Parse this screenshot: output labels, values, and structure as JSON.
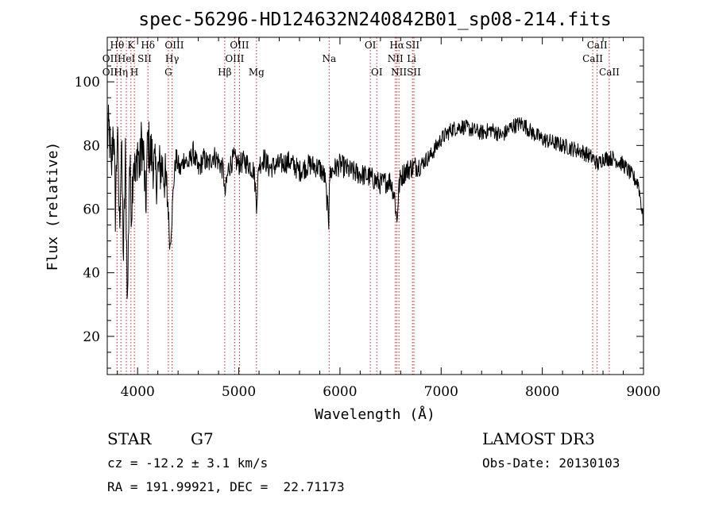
{
  "chart_data": {
    "type": "line",
    "title": "spec-56296-HD124632N240842B01_sp08-214.fits",
    "xlabel": "Wavelength (Å)",
    "ylabel": "Flux (relative)",
    "xlim": [
      3700,
      9000
    ],
    "ylim": [
      8,
      114
    ],
    "x_ticks": [
      4000,
      5000,
      6000,
      7000,
      8000,
      9000
    ],
    "y_ticks": [
      20,
      40,
      60,
      80,
      100
    ],
    "x_minor_step": 200,
    "y_minor_step": 5,
    "grid": false,
    "line_color": "#000000",
    "marker_color": "#c62828",
    "series": [
      {
        "x": [
          3700,
          3720,
          3740,
          3760,
          3780,
          3800,
          3820,
          3840,
          3860,
          3880,
          3900,
          3920,
          3940,
          3960,
          3980,
          4000,
          4020,
          4040,
          4060,
          4080,
          4100,
          4120,
          4150,
          4180,
          4210,
          4240,
          4270,
          4300,
          4320,
          4340,
          4360,
          4380,
          4420,
          4460,
          4500,
          4550,
          4600,
          4650,
          4700,
          4750,
          4800,
          4850,
          4861,
          4900,
          4950,
          5000,
          5050,
          5100,
          5150,
          5175,
          5200,
          5250,
          5300,
          5400,
          5500,
          5600,
          5700,
          5800,
          5850,
          5890,
          5895,
          5920,
          6000,
          6100,
          6200,
          6300,
          6400,
          6500,
          6540,
          6563,
          6580,
          6600,
          6650,
          6700,
          6800,
          6900,
          7000,
          7100,
          7200,
          7300,
          7400,
          7500,
          7600,
          7700,
          7800,
          7900,
          8000,
          8100,
          8200,
          8300,
          8400,
          8500,
          8550,
          8600,
          8700,
          8800,
          8900,
          8950,
          9000
        ],
        "y": [
          82,
          85,
          70,
          88,
          60,
          84,
          55,
          80,
          45,
          76,
          30,
          75,
          60,
          78,
          68,
          80,
          72,
          82,
          76,
          60,
          82,
          78,
          76,
          70,
          72,
          74,
          70,
          62,
          48,
          58,
          70,
          76,
          72,
          76,
          74,
          78,
          72,
          76,
          74,
          77,
          75,
          72,
          64,
          73,
          76,
          74,
          75,
          74,
          72,
          62,
          74,
          76,
          73,
          74,
          75,
          72,
          74,
          73,
          70,
          56,
          70,
          72,
          74,
          72,
          71,
          70,
          68,
          69,
          64,
          56,
          66,
          70,
          72,
          73,
          74,
          77,
          82,
          85,
          86,
          85,
          84,
          85,
          83,
          86,
          87,
          84,
          82,
          81,
          80,
          79,
          78,
          76,
          74,
          76,
          76,
          74,
          70,
          68,
          56
        ]
      }
    ],
    "line_labels": [
      {
        "text": "Hθ",
        "x": 3797,
        "row": 0,
        "marked": true
      },
      {
        "text": "K",
        "x": 3934,
        "row": 0,
        "marked": true
      },
      {
        "text": "Hδ",
        "x": 4102,
        "row": 0,
        "marked": true
      },
      {
        "text": "OIII",
        "x": 4363,
        "row": 0,
        "marked": false
      },
      {
        "text": "OIII",
        "x": 5007,
        "row": 0,
        "marked": true
      },
      {
        "text": "OI",
        "x": 6300,
        "row": 0,
        "marked": true
      },
      {
        "text": "Hα",
        "x": 6563,
        "row": 0,
        "marked": true
      },
      {
        "text": "SII",
        "x": 6717,
        "row": 0,
        "marked": true
      },
      {
        "text": "CaII",
        "x": 8542,
        "row": 0,
        "marked": true
      },
      {
        "text": "OII",
        "x": 3727,
        "row": 1,
        "marked": false
      },
      {
        "text": "HeI",
        "x": 3889,
        "row": 1,
        "marked": true
      },
      {
        "text": "SII",
        "x": 4069,
        "row": 1,
        "marked": false
      },
      {
        "text": "Hγ",
        "x": 4341,
        "row": 1,
        "marked": true
      },
      {
        "text": "OIII",
        "x": 4959,
        "row": 1,
        "marked": true
      },
      {
        "text": "Na",
        "x": 5893,
        "row": 1,
        "marked": true
      },
      {
        "text": "NII",
        "x": 6548,
        "row": 1,
        "marked": true
      },
      {
        "text": "Li",
        "x": 6708,
        "row": 1,
        "marked": false
      },
      {
        "text": "CaII",
        "x": 8498,
        "row": 1,
        "marked": true
      },
      {
        "text": "OII",
        "x": 3727,
        "row": 2,
        "marked": false
      },
      {
        "text": "Hη",
        "x": 3835,
        "row": 2,
        "marked": true
      },
      {
        "text": "H",
        "x": 3968,
        "row": 2,
        "marked": true
      },
      {
        "text": "G",
        "x": 4304,
        "row": 2,
        "marked": true
      },
      {
        "text": "Hβ",
        "x": 4861,
        "row": 2,
        "marked": true
      },
      {
        "text": "Mg",
        "x": 5175,
        "row": 2,
        "marked": true
      },
      {
        "text": "OI",
        "x": 6364,
        "row": 2,
        "marked": true
      },
      {
        "text": "NII",
        "x": 6583,
        "row": 2,
        "marked": true
      },
      {
        "text": "SII",
        "x": 6731,
        "row": 2,
        "marked": true
      },
      {
        "text": "CaII",
        "x": 8662,
        "row": 2,
        "marked": true
      }
    ]
  },
  "info": {
    "class": "STAR",
    "subclass": "G7",
    "survey": "LAMOST DR3",
    "cz": "cz = -12.2 ± 3.1 km/s",
    "obs_date": "Obs-Date: 20130103",
    "coords": "RA = 191.99921, DEC =  22.71173"
  }
}
